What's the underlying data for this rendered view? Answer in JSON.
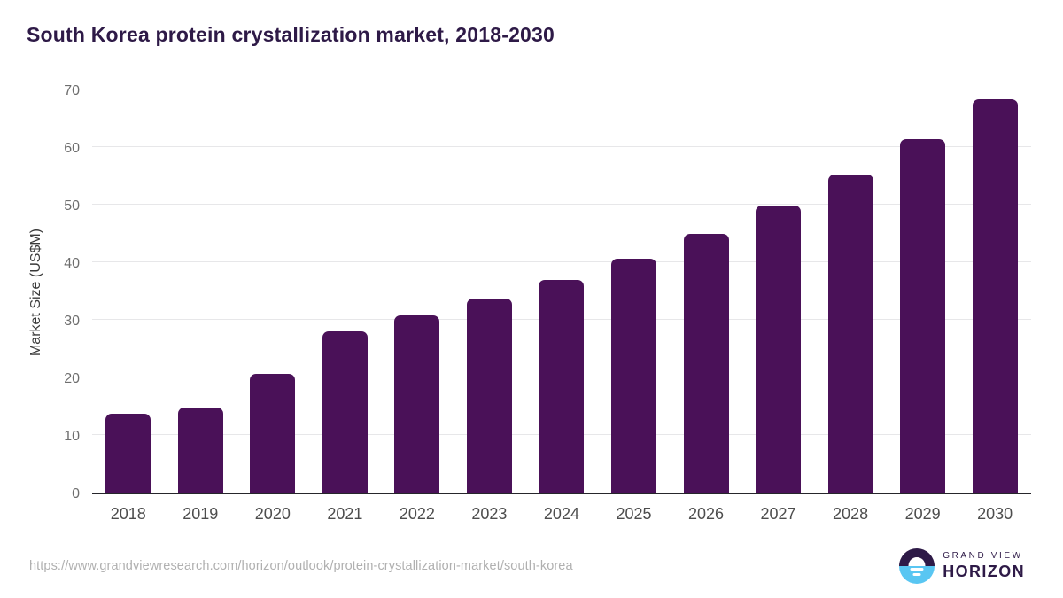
{
  "title": "South Korea protein crystallization market, 2018-2030",
  "chart_data": {
    "type": "bar",
    "title": "South Korea protein crystallization market, 2018-2030",
    "categories": [
      "2018",
      "2019",
      "2020",
      "2021",
      "2022",
      "2023",
      "2024",
      "2025",
      "2026",
      "2027",
      "2028",
      "2029",
      "2030"
    ],
    "values": [
      13.7,
      14.9,
      20.7,
      28.1,
      30.9,
      33.8,
      37.1,
      40.8,
      45.1,
      50.0,
      55.4,
      61.6,
      68.6
    ],
    "xlabel": "",
    "ylabel": "Market Size (US$M)",
    "ylim": [
      0,
      70
    ],
    "yticks": [
      0,
      10,
      20,
      30,
      40,
      50,
      60,
      70
    ],
    "grid": "horizontal",
    "legend": "none",
    "bar_color": "#4a1158"
  },
  "colors": {
    "bar": "#4a1158",
    "title": "#2e1a47",
    "grid": "#e7e7e9",
    "axis": "#26262b",
    "logo_purple": "#2e1a47",
    "logo_blue": "#59c6f2"
  },
  "footer": {
    "source_url": "https://www.grandviewresearch.com/horizon/outlook/protein-crystallization-market/south-korea",
    "logo": {
      "line1": "GRAND VIEW",
      "line2": "HORIZON"
    }
  }
}
